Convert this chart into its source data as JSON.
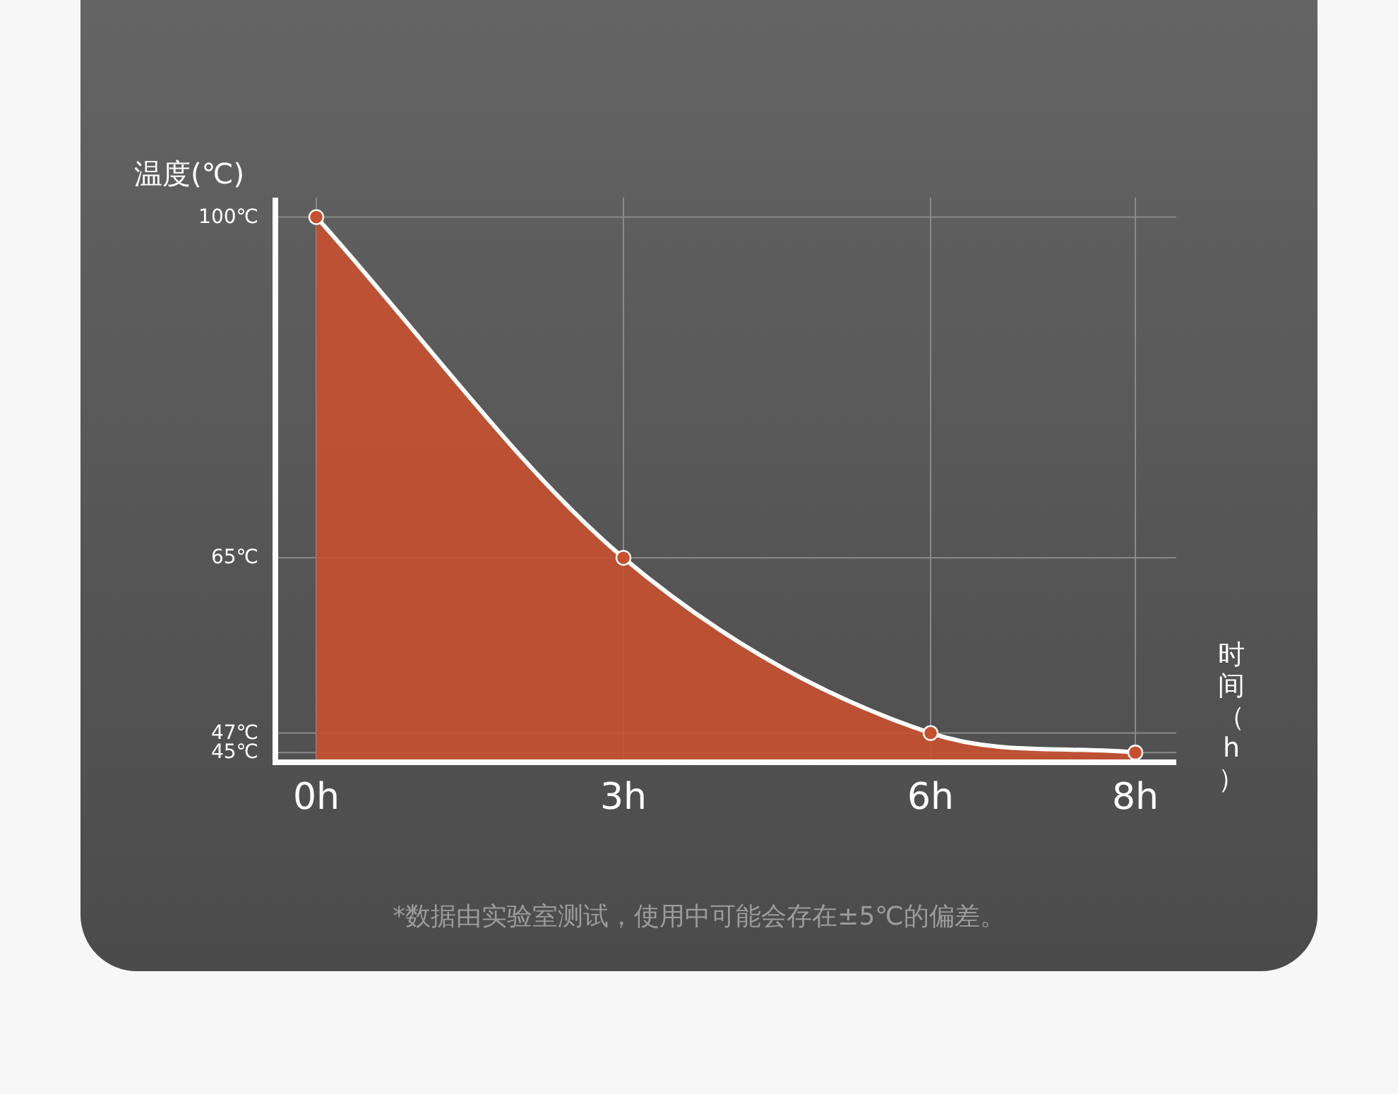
{
  "chart_data": {
    "type": "area",
    "ylabel": "温度(℃)",
    "xlabel": "时间（h）",
    "x": [
      0,
      3,
      6,
      8
    ],
    "series": [
      {
        "color": "#c8502f",
        "values": [
          100,
          65,
          47,
          45
        ]
      }
    ],
    "xlim": [
      -0.4,
      8.4
    ],
    "xticks": [
      {
        "value": 0,
        "label": "0h"
      },
      {
        "value": 3,
        "label": "3h"
      },
      {
        "value": 6,
        "label": "6h"
      },
      {
        "value": 8,
        "label": "8h"
      }
    ],
    "ylim": [
      44,
      102
    ],
    "yticks": [
      {
        "value": 100,
        "label": "100℃"
      },
      {
        "value": 65,
        "label": "65℃"
      },
      {
        "value": 47,
        "label": "47℃"
      },
      {
        "value": 45,
        "label": "45℃"
      }
    ],
    "grid": true,
    "marker": "circle",
    "annotations": [
      "*数据由实验室测试，使用中可能会存在±5℃的偏差。"
    ]
  }
}
